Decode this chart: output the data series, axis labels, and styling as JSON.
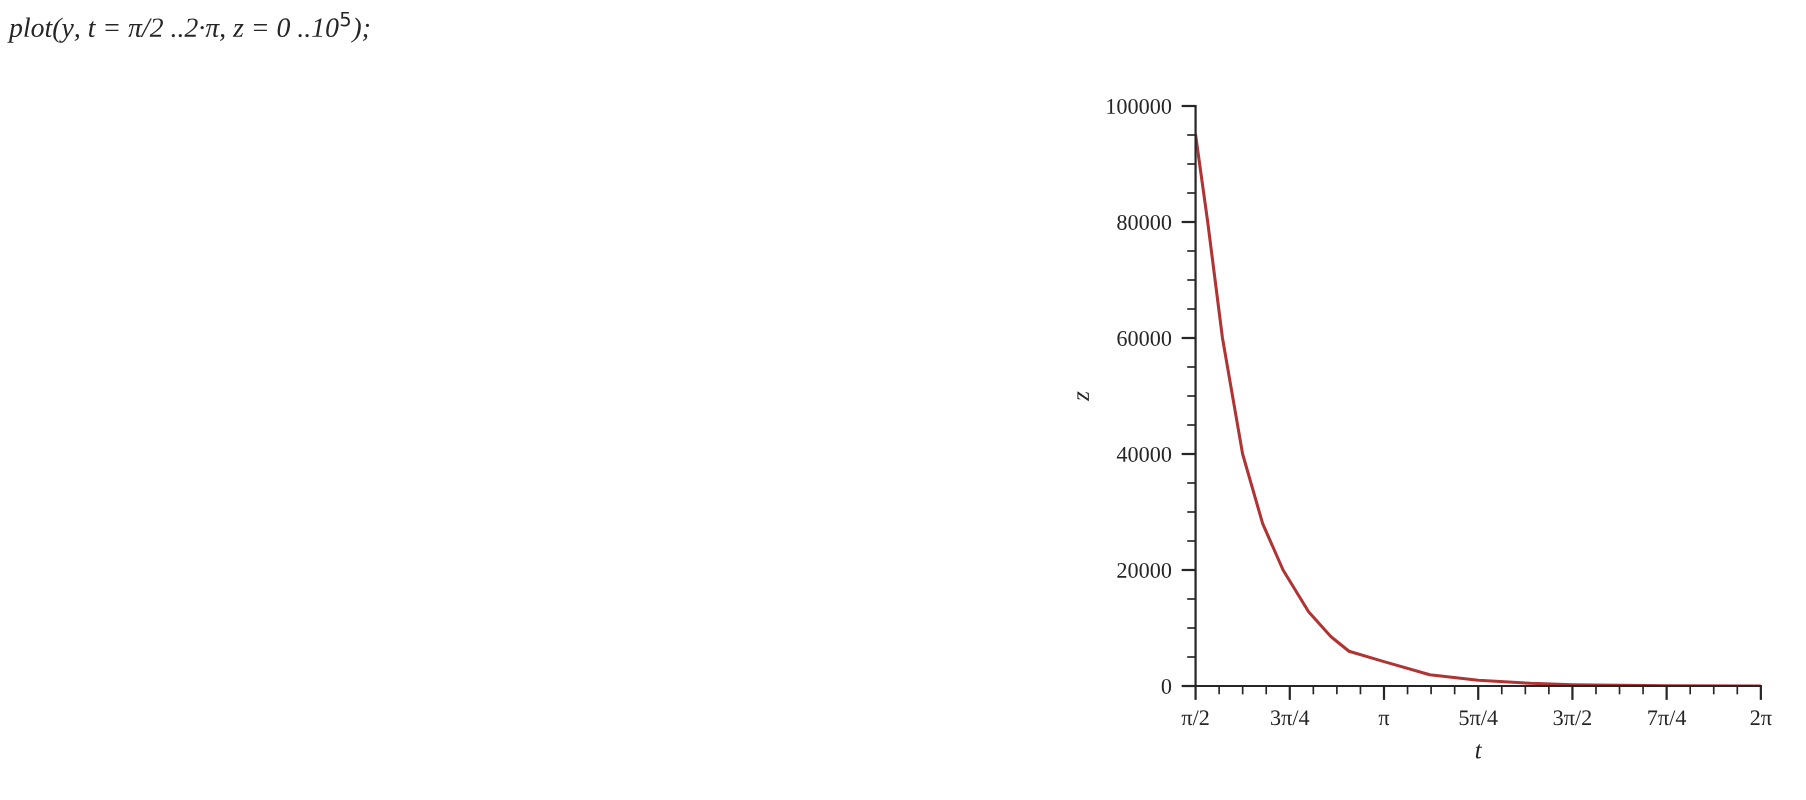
{
  "chart_data": {
    "type": "line",
    "annotations": [
      "plot(y, t = π/2 ..2·π, z = 0 ..10$^{5}$);"
    ],
    "xlabel": "t",
    "ylabel": "z",
    "series": [
      {
        "color": "#b03434",
        "x": [
          1.571,
          1.672,
          1.795,
          1.963,
          2.13,
          2.3,
          2.513,
          2.7,
          2.85,
          3.142,
          3.523,
          3.927,
          4.364,
          4.712,
          5.498,
          6.283
        ],
        "values": [
          95000,
          80000,
          60000,
          40000,
          28000,
          20000,
          12800,
          8500,
          6000,
          4200,
          1950,
          1000,
          460,
          230,
          50,
          10
        ]
      }
    ],
    "xlim": [
      1.5708,
      6.2832
    ],
    "ylim": [
      0,
      100000
    ],
    "xticks": [
      {
        "value": 1.5708,
        "label": "π/2"
      },
      {
        "value": 2.3562,
        "label": "3π/4"
      },
      {
        "value": 3.1416,
        "label": "π"
      },
      {
        "value": 3.927,
        "label": "5π/4"
      },
      {
        "value": 4.7124,
        "label": "3π/2"
      },
      {
        "value": 5.4978,
        "label": "7π/4"
      },
      {
        "value": 6.2832,
        "label": "2π"
      }
    ],
    "yticks": [
      0,
      20000,
      40000,
      60000,
      80000,
      100000
    ],
    "grid": false,
    "legend": false,
    "marker": "none",
    "line_style": "solid"
  }
}
